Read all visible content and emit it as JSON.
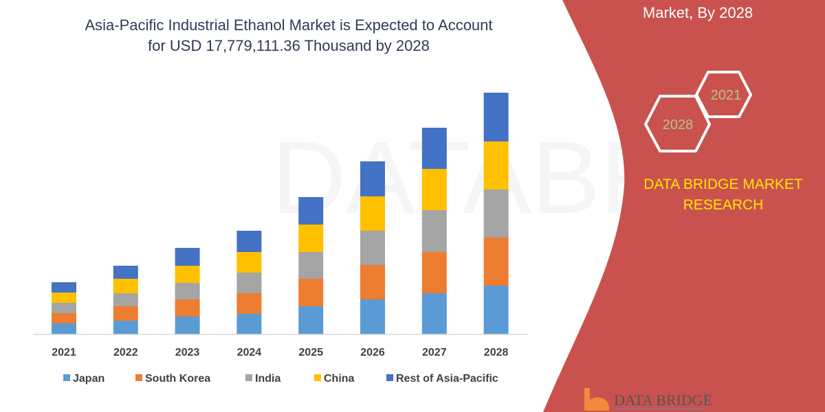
{
  "chart_data": {
    "type": "bar",
    "stacked": true,
    "title": "Asia-Pacific Industrial Ethanol Market is Expected to Account for USD 17,779,111.36 Thousand by 2028",
    "title_lines": [
      "Asia-Pacific Industrial Ethanol Market is Expected to Account",
      "for USD 17,779,111.36 Thousand by 2028"
    ],
    "categories": [
      "2021",
      "2022",
      "2023",
      "2024",
      "2025",
      "2026",
      "2027",
      "2028"
    ],
    "series": [
      {
        "name": "Japan",
        "color": "#5b9bd5",
        "values": [
          16,
          20,
          26,
          30,
          41,
          51,
          60,
          71
        ]
      },
      {
        "name": "South Korea",
        "color": "#ed7d31",
        "values": [
          15,
          21,
          25,
          30,
          40,
          50,
          60,
          70
        ]
      },
      {
        "name": "India",
        "color": "#a5a5a5",
        "values": [
          15,
          19,
          24,
          30,
          39,
          50,
          61,
          70
        ]
      },
      {
        "name": "China",
        "color": "#ffc000",
        "values": [
          15,
          21,
          25,
          30,
          40,
          50,
          60,
          70
        ]
      },
      {
        "name": "Rest of Asia-Pacific",
        "color": "#4472c4",
        "values": [
          15,
          19,
          26,
          31,
          40,
          51,
          60,
          71
        ]
      }
    ],
    "y_axis_shown": false,
    "grid": false,
    "legend_position": "bottom",
    "units": "relative (no y-axis printed)"
  },
  "panel": {
    "heading": "Market, By 2028",
    "hex_years": [
      "2021",
      "2028"
    ],
    "brand_lines": [
      "DATA BRIDGE MARKET",
      "RESEARCH"
    ],
    "logo_text": "DATA BRIDGE",
    "color": "#c9524e"
  },
  "watermark": "DATABRIDGE"
}
